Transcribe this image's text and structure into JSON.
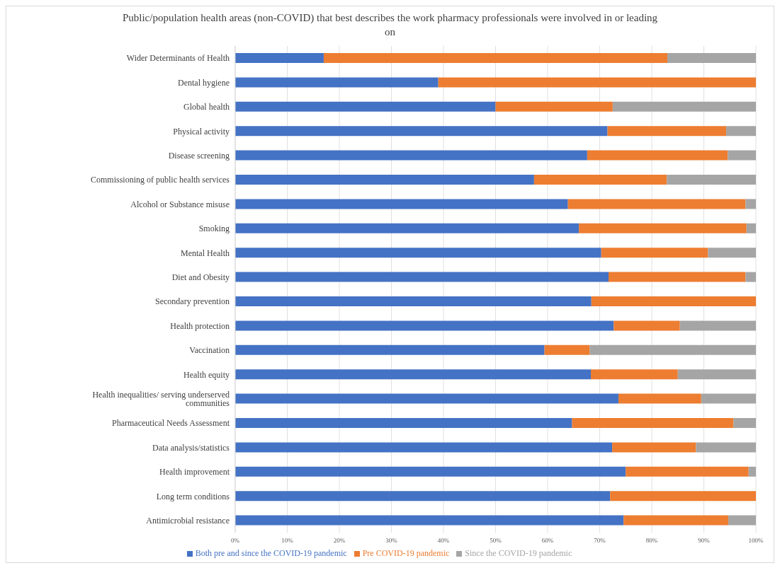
{
  "chart_data": {
    "type": "bar",
    "orientation": "horizontal",
    "stacked": true,
    "title": "Public/population health areas (non-COVID) that best describes the work pharmacy professionals were involved in or leading on",
    "categories": [
      "Wider Determinants of Health",
      "Dental hygiene",
      "Global health",
      "Physical activity",
      "Disease screening",
      "Commissioning of public health services",
      "Alcohol or Substance misuse",
      "Smoking",
      "Mental Health",
      "Diet and Obesity",
      "Secondary prevention",
      "Health protection",
      "Vaccination",
      "Health equity",
      "Health inequalities/ serving underserved communities",
      "Pharmaceutical Needs Assessment",
      "Data analysis/statistics",
      "Health improvement",
      "Long term conditions",
      "Antimicrobial resistance"
    ],
    "series": [
      {
        "name": "Both pre and since the COVID-19 pandemic",
        "color": "#4472c4",
        "values": [
          17,
          39,
          50,
          71.5,
          67.6,
          57.4,
          63.9,
          66,
          70.3,
          71.7,
          68.4,
          72.7,
          59.4,
          68.3,
          73.6,
          64.7,
          72.4,
          75,
          72,
          74.6
        ]
      },
      {
        "name": "Pre COVID-19 pandemic",
        "color": "#ed7d31",
        "values": [
          66,
          61,
          22.5,
          22.8,
          27,
          25.5,
          34.1,
          32.2,
          20.5,
          26.3,
          31.6,
          12.7,
          8.7,
          16.7,
          15.9,
          31,
          16.1,
          23.6,
          28,
          20.1
        ]
      },
      {
        "name": "Since the COVID-19 pandemic",
        "color": "#a5a5a5",
        "values": [
          17,
          0,
          27.5,
          5.7,
          5.4,
          17.1,
          2,
          1.8,
          9.2,
          2,
          0,
          14.6,
          31.9,
          15,
          10.5,
          4.3,
          11.5,
          1.4,
          0,
          5.3
        ]
      }
    ],
    "xlim": [
      0,
      100
    ],
    "xticks": [
      {
        "value": 0,
        "label": "0%"
      },
      {
        "value": 10,
        "label": "10%"
      },
      {
        "value": 20,
        "label": "20%"
      },
      {
        "value": 30,
        "label": "30%"
      },
      {
        "value": 40,
        "label": "40%"
      },
      {
        "value": 50,
        "label": "50%"
      },
      {
        "value": 60,
        "label": "60%"
      },
      {
        "value": 70,
        "label": "70%"
      },
      {
        "value": 80,
        "label": "80%"
      },
      {
        "value": 90,
        "label": "90%"
      },
      {
        "value": 100,
        "label": "100%"
      }
    ],
    "grid": "x",
    "legend": "bottom"
  }
}
